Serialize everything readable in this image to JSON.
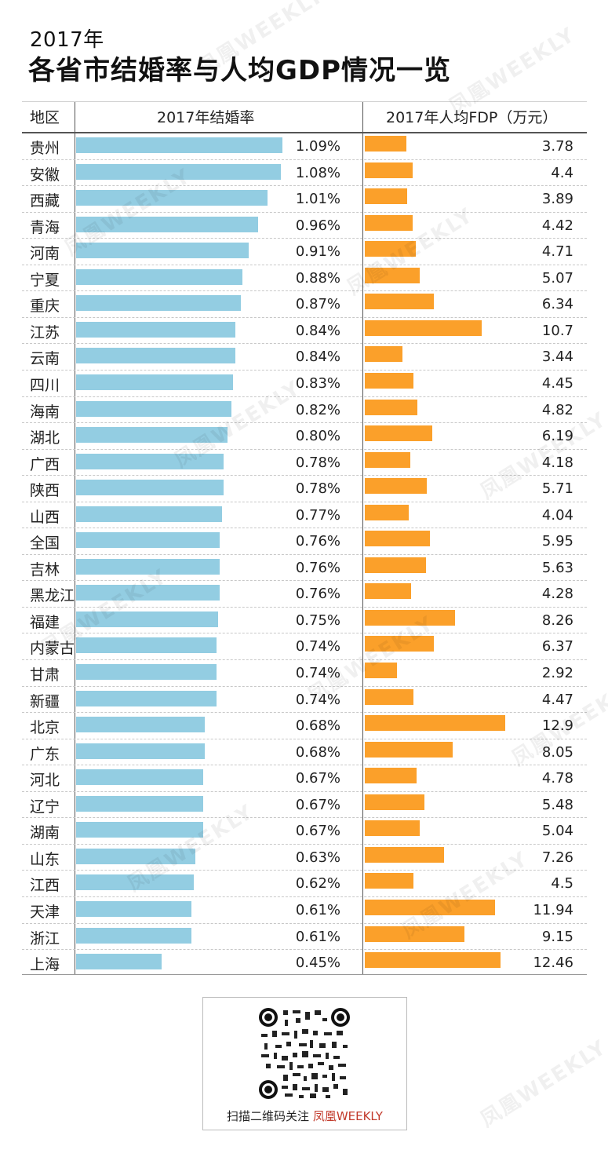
{
  "header": {
    "year": "2017年",
    "title": "各省市结婚率与人均GDP情况一览"
  },
  "chart_data": {
    "type": "table",
    "columns": [
      "地区",
      "2017年结婚率",
      "2017年人均FDP（万元）"
    ],
    "regions": [
      "贵州",
      "安徽",
      "西藏",
      "青海",
      "河南",
      "宁夏",
      "重庆",
      "江苏",
      "云南",
      "四川",
      "海南",
      "湖北",
      "广西",
      "陕西",
      "山西",
      "全国",
      "吉林",
      "黑龙江",
      "福建",
      "内蒙古",
      "甘肃",
      "新疆",
      "北京",
      "广东",
      "河北",
      "辽宁",
      "湖南",
      "山东",
      "江西",
      "天津",
      "浙江",
      "上海"
    ],
    "marriage_rate_labels": [
      "1.09%",
      "1.08%",
      "1.01%",
      "0.96%",
      "0.91%",
      "0.88%",
      "0.87%",
      "0.84%",
      "0.84%",
      "0.83%",
      "0.82%",
      "0.80%",
      "0.78%",
      "0.78%",
      "0.77%",
      "0.76%",
      "0.76%",
      "0.76%",
      "0.75%",
      "0.74%",
      "0.74%",
      "0.74%",
      "0.68%",
      "0.68%",
      "0.67%",
      "0.67%",
      "0.67%",
      "0.63%",
      "0.62%",
      "0.61%",
      "0.61%",
      "0.45%"
    ],
    "marriage_rate": [
      1.09,
      1.08,
      1.01,
      0.96,
      0.91,
      0.88,
      0.87,
      0.84,
      0.84,
      0.83,
      0.82,
      0.8,
      0.78,
      0.78,
      0.77,
      0.76,
      0.76,
      0.76,
      0.75,
      0.74,
      0.74,
      0.74,
      0.68,
      0.68,
      0.67,
      0.67,
      0.67,
      0.63,
      0.62,
      0.61,
      0.61,
      0.45
    ],
    "gdp_per_capita_labels": [
      "3.78",
      "4.4",
      "3.89",
      "4.42",
      "4.71",
      "5.07",
      "6.34",
      "10.7",
      "3.44",
      "4.45",
      "4.82",
      "6.19",
      "4.18",
      "5.71",
      "4.04",
      "5.95",
      "5.63",
      "4.28",
      "8.26",
      "6.37",
      "2.92",
      "4.47",
      "12.9",
      "8.05",
      "4.78",
      "5.48",
      "5.04",
      "7.26",
      "4.5",
      "11.94",
      "9.15",
      "12.46"
    ],
    "gdp_per_capita": [
      3.78,
      4.4,
      3.89,
      4.42,
      4.71,
      5.07,
      6.34,
      10.7,
      3.44,
      4.45,
      4.82,
      6.19,
      4.18,
      5.71,
      4.04,
      5.95,
      5.63,
      4.28,
      8.26,
      6.37,
      2.92,
      4.47,
      12.9,
      8.05,
      4.78,
      5.48,
      5.04,
      7.26,
      4.5,
      11.94,
      9.15,
      12.46
    ],
    "colors": {
      "marriage_bar": "#93cde2",
      "gdp_bar": "#fba02a"
    }
  },
  "footer": {
    "qr_caption": "扫描二维码关注",
    "qr_brand": "凤凰WEEKLY"
  },
  "watermark": {
    "text": "凤凰WEEKLY"
  }
}
